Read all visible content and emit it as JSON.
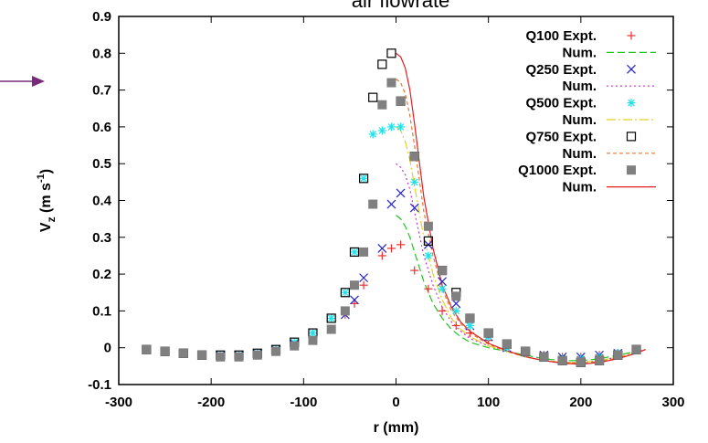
{
  "chart_data": {
    "type": "scatter",
    "title": "air flowrate",
    "xlabel": "r (mm)",
    "ylabel": "Vz (m s-1)",
    "xlim": [
      -300,
      300
    ],
    "ylim": [
      -0.1,
      0.9
    ],
    "xticks": [
      "-300",
      "-200",
      "-100",
      "0",
      "100",
      "200",
      "300"
    ],
    "yticks": [
      "-0.1",
      "0",
      "0.1",
      "0.2",
      "0.3",
      "0.4",
      "0.5",
      "0.6",
      "0.7",
      "0.8",
      "0.9"
    ],
    "grid": false,
    "legend_position": "top-right",
    "series": [
      {
        "name": "Q100 Expt.",
        "kind": "points",
        "marker": "plus",
        "color": "#e8302e",
        "x": [
          -270,
          -250,
          -230,
          -210,
          -190,
          -170,
          -150,
          -130,
          -110,
          -90,
          -70,
          -55,
          -45,
          -35,
          -15,
          -5,
          5,
          20,
          35,
          50,
          65,
          80,
          100,
          120,
          140,
          160,
          180,
          200,
          220,
          240,
          260
        ],
        "y": [
          -0.005,
          -0.01,
          -0.015,
          -0.02,
          -0.02,
          -0.02,
          -0.015,
          -0.005,
          0.005,
          0.02,
          0.05,
          0.09,
          0.12,
          0.17,
          0.25,
          0.27,
          0.28,
          0.21,
          0.16,
          0.1,
          0.06,
          0.04,
          0.02,
          0.0,
          -0.01,
          -0.02,
          -0.025,
          -0.025,
          -0.02,
          -0.015,
          -0.005
        ]
      },
      {
        "name": "Num.",
        "kind": "line",
        "dash": "8,4",
        "color": "#22c322",
        "x": [
          0,
          5,
          10,
          15,
          20,
          25,
          30,
          40,
          50,
          60,
          70,
          80,
          100,
          120,
          140,
          160,
          180,
          200,
          220,
          240,
          260,
          270
        ],
        "y": [
          0.36,
          0.35,
          0.33,
          0.3,
          0.26,
          0.22,
          0.18,
          0.12,
          0.08,
          0.05,
          0.03,
          0.015,
          0.0,
          -0.01,
          -0.02,
          -0.03,
          -0.035,
          -0.035,
          -0.03,
          -0.02,
          -0.01,
          -0.005
        ]
      },
      {
        "name": "Q250 Expt.",
        "kind": "points",
        "marker": "cross",
        "color": "#2323c8",
        "x": [
          -270,
          -250,
          -230,
          -210,
          -190,
          -170,
          -150,
          -130,
          -110,
          -90,
          -70,
          -55,
          -45,
          -35,
          -15,
          -5,
          5,
          20,
          35,
          50,
          65,
          80,
          100,
          120,
          140,
          160,
          180,
          200,
          220,
          240,
          260
        ],
        "y": [
          -0.005,
          -0.01,
          -0.015,
          -0.02,
          -0.02,
          -0.02,
          -0.015,
          -0.005,
          0.01,
          0.02,
          0.05,
          0.09,
          0.13,
          0.19,
          0.27,
          0.39,
          0.42,
          0.38,
          0.28,
          0.18,
          0.12,
          0.06,
          0.03,
          0.0,
          -0.01,
          -0.02,
          -0.025,
          -0.025,
          -0.02,
          -0.015,
          -0.005
        ]
      },
      {
        "name": "Num.",
        "kind": "line",
        "dash": "2,3",
        "color": "#cc33cc",
        "x": [
          0,
          5,
          10,
          15,
          20,
          25,
          30,
          40,
          50,
          60,
          70,
          80,
          100,
          120,
          140,
          160,
          180,
          200,
          220,
          240,
          260,
          270
        ],
        "y": [
          0.5,
          0.49,
          0.47,
          0.43,
          0.37,
          0.31,
          0.25,
          0.17,
          0.11,
          0.07,
          0.045,
          0.025,
          0.005,
          -0.01,
          -0.025,
          -0.035,
          -0.04,
          -0.04,
          -0.035,
          -0.025,
          -0.012,
          -0.005
        ]
      },
      {
        "name": "Q500 Expt.",
        "kind": "points",
        "marker": "star",
        "color": "#22e0e8",
        "x": [
          -270,
          -250,
          -230,
          -210,
          -190,
          -170,
          -150,
          -130,
          -110,
          -90,
          -70,
          -55,
          -45,
          -35,
          -25,
          -15,
          -5,
          5,
          20,
          35,
          50,
          65,
          80,
          100,
          120,
          140,
          160,
          180,
          200,
          220,
          240,
          260
        ],
        "y": [
          -0.005,
          -0.01,
          -0.015,
          -0.02,
          -0.02,
          -0.02,
          -0.015,
          -0.005,
          0.015,
          0.04,
          0.08,
          0.15,
          0.26,
          0.46,
          0.58,
          0.59,
          0.6,
          0.6,
          0.45,
          0.25,
          0.16,
          0.1,
          0.06,
          0.03,
          0.0,
          -0.015,
          -0.025,
          -0.03,
          -0.03,
          -0.025,
          -0.015,
          -0.005
        ]
      },
      {
        "name": "Num.",
        "kind": "line",
        "dash": "10,3,2,3",
        "color": "#e0d222",
        "x": [
          0,
          5,
          10,
          15,
          20,
          25,
          30,
          40,
          50,
          60,
          70,
          80,
          100,
          120,
          140,
          160,
          180,
          200,
          220,
          240,
          260,
          270
        ],
        "y": [
          0.6,
          0.59,
          0.56,
          0.51,
          0.44,
          0.37,
          0.3,
          0.2,
          0.13,
          0.08,
          0.05,
          0.03,
          0.005,
          -0.01,
          -0.025,
          -0.035,
          -0.04,
          -0.04,
          -0.035,
          -0.025,
          -0.012,
          -0.005
        ]
      },
      {
        "name": "Q750 Expt.",
        "kind": "points",
        "marker": "open-square",
        "color": "#000000",
        "x": [
          -270,
          -250,
          -230,
          -210,
          -190,
          -170,
          -150,
          -130,
          -110,
          -90,
          -70,
          -55,
          -45,
          -35,
          -25,
          -15,
          -5,
          5,
          20,
          35,
          50,
          65,
          80,
          100,
          120,
          140,
          160,
          180,
          200,
          220,
          240,
          260
        ],
        "y": [
          -0.005,
          -0.01,
          -0.015,
          -0.02,
          -0.02,
          -0.02,
          -0.015,
          -0.005,
          0.015,
          0.04,
          0.08,
          0.15,
          0.26,
          0.46,
          0.68,
          0.77,
          0.8,
          0.67,
          0.52,
          0.29,
          0.21,
          0.15,
          0.08,
          0.04,
          0.01,
          -0.01,
          -0.025,
          -0.035,
          -0.04,
          -0.035,
          -0.02,
          -0.005
        ]
      },
      {
        "name": "Num.",
        "kind": "line",
        "dash": "4,3",
        "color": "#e87830",
        "x": [
          0,
          5,
          10,
          15,
          20,
          25,
          30,
          40,
          50,
          60,
          70,
          80,
          100,
          120,
          140,
          160,
          180,
          200,
          220,
          240,
          260,
          270
        ],
        "y": [
          0.73,
          0.72,
          0.69,
          0.63,
          0.55,
          0.46,
          0.37,
          0.25,
          0.16,
          0.1,
          0.065,
          0.04,
          0.01,
          -0.01,
          -0.025,
          -0.035,
          -0.04,
          -0.042,
          -0.038,
          -0.028,
          -0.015,
          -0.005
        ]
      },
      {
        "name": "Q1000 Expt.",
        "kind": "points",
        "marker": "filled-square",
        "color": "#808080",
        "x": [
          -270,
          -250,
          -230,
          -210,
          -190,
          -170,
          -150,
          -130,
          -110,
          -90,
          -70,
          -55,
          -45,
          -35,
          -25,
          -15,
          -5,
          5,
          20,
          35,
          50,
          65,
          80,
          100,
          120,
          140,
          160,
          180,
          200,
          220,
          240,
          260
        ],
        "y": [
          -0.005,
          -0.01,
          -0.015,
          -0.02,
          -0.025,
          -0.025,
          -0.02,
          -0.01,
          0.005,
          0.02,
          0.05,
          0.1,
          0.17,
          0.26,
          0.39,
          0.66,
          0.72,
          0.67,
          0.52,
          0.33,
          0.21,
          0.14,
          0.08,
          0.04,
          0.01,
          -0.01,
          -0.025,
          -0.035,
          -0.04,
          -0.035,
          -0.02,
          -0.005
        ]
      },
      {
        "name": "Num.",
        "kind": "line",
        "dash": "",
        "color": "#e02020",
        "x": [
          0,
          5,
          10,
          15,
          20,
          25,
          30,
          40,
          50,
          60,
          70,
          80,
          100,
          120,
          140,
          160,
          180,
          200,
          220,
          240,
          260,
          270
        ],
        "y": [
          0.8,
          0.79,
          0.76,
          0.7,
          0.61,
          0.51,
          0.41,
          0.27,
          0.17,
          0.11,
          0.07,
          0.045,
          0.012,
          -0.008,
          -0.024,
          -0.035,
          -0.042,
          -0.045,
          -0.04,
          -0.03,
          -0.015,
          -0.005
        ]
      }
    ]
  }
}
